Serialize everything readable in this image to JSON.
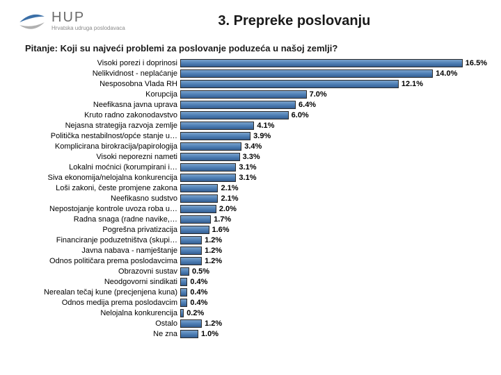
{
  "logo": {
    "hup": "HUP",
    "sub": "Hrvatska udruga poslodavaca"
  },
  "title": "3. Prepreke poslovanju",
  "question": "Pitanje: Koji su najveći problemi za poslovanje poduzeća u našoj zemlji?",
  "chart": {
    "type": "bar",
    "orientation": "horizontal",
    "xmax": 17.0,
    "bar_fill_top": "#7aa2cc",
    "bar_fill_mid": "#4f7fb6",
    "bar_fill_bot": "#355f92",
    "bar_border": "#2a2a2a",
    "value_suffix": "%",
    "label_fontsize": 11,
    "value_fontsize": 11,
    "background_color": "#ffffff",
    "rows": [
      {
        "label": "Visoki porezi i doprinosi",
        "value": 16.5
      },
      {
        "label": "Nelikvidnost - neplaćanje",
        "value": 14.0
      },
      {
        "label": "Nesposobna Vlada RH",
        "value": 12.1
      },
      {
        "label": "Korupcija",
        "value": 7.0
      },
      {
        "label": "Neefikasna javna uprava",
        "value": 6.4
      },
      {
        "label": "Kruto radno zakonodavstvo",
        "value": 6.0
      },
      {
        "label": "Nejasna strategija razvoja zemlje",
        "value": 4.1
      },
      {
        "label": "Politička nestabilnost/opće stanje u…",
        "value": 3.9
      },
      {
        "label": "Komplicirana birokracija/papirologija",
        "value": 3.4
      },
      {
        "label": "Visoki neporezni nameti",
        "value": 3.3
      },
      {
        "label": "Lokalni moćnici (korumpirani i…",
        "value": 3.1
      },
      {
        "label": "Siva ekonomija/nelojalna konkurencija",
        "value": 3.1
      },
      {
        "label": "Loši zakoni, česte promjene zakona",
        "value": 2.1
      },
      {
        "label": "Neefikasno sudstvo",
        "value": 2.1
      },
      {
        "label": "Nepostojanje kontrole uvoza roba u…",
        "value": 2.0
      },
      {
        "label": "Radna snaga (radne navike,…",
        "value": 1.7
      },
      {
        "label": "Pogrešna privatizacija",
        "value": 1.6
      },
      {
        "label": "Financiranje poduzetništva (skupi…",
        "value": 1.2
      },
      {
        "label": "Javna nabava - namještanje",
        "value": 1.2
      },
      {
        "label": "Odnos političara prema poslodavcima",
        "value": 1.2
      },
      {
        "label": "Obrazovni sustav",
        "value": 0.5
      },
      {
        "label": "Neodgovorni sindikati",
        "value": 0.4
      },
      {
        "label": "Nerealan tečaj kune (precjenjena kuna)",
        "value": 0.4
      },
      {
        "label": "Odnos medija prema poslodavcim",
        "value": 0.4
      },
      {
        "label": "Nelojalna konkurencija",
        "value": 0.2
      },
      {
        "label": "Ostalo",
        "value": 1.2
      },
      {
        "label": "Ne zna",
        "value": 1.0
      }
    ]
  }
}
